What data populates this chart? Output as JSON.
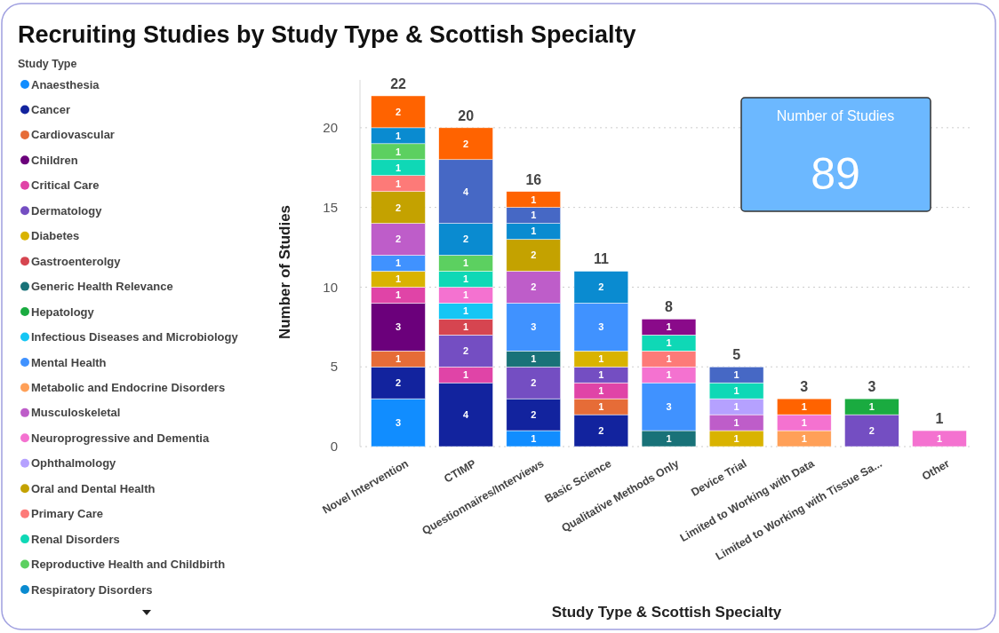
{
  "chart_data": [
    {
      "type": "bar",
      "stacked": true,
      "title": "Recruiting Studies by Study Type & Scottish Specialty",
      "xlabel": "Study Type & Scottish Specialty",
      "ylabel": "Number of Studies",
      "legend_title": "Study Type",
      "legend": "left",
      "grid": "y",
      "data_labels": true,
      "categories": [
        "Novel Intervention",
        "CTIMP",
        "Questionnaires/Interviews",
        "Basic Science",
        "Qualitative Methods Only",
        "Device Trial",
        "Limited to Working with Data",
        "Limited to Working with Tissue Sa...",
        "Other"
      ],
      "ylim": [
        0,
        23
      ],
      "yticks": [
        0,
        5,
        10,
        15,
        20
      ],
      "totals": [
        "22",
        "20",
        "16",
        "11",
        "8",
        "5",
        "3",
        "3",
        "1"
      ],
      "series": [
        {
          "name": "Anaesthesia",
          "color": "#118dff",
          "values": [
            3,
            null,
            1,
            null,
            null,
            null,
            null,
            null,
            null
          ]
        },
        {
          "name": "Cancer",
          "color": "#12239e",
          "values": [
            2,
            4,
            2,
            2,
            null,
            null,
            null,
            null,
            null
          ]
        },
        {
          "name": "Cardiovascular",
          "color": "#e66c37",
          "values": [
            1,
            null,
            null,
            1,
            null,
            null,
            null,
            null,
            null
          ]
        },
        {
          "name": "Children",
          "color": "#6b007b",
          "values": [
            3,
            null,
            null,
            null,
            null,
            null,
            null,
            null,
            null
          ]
        },
        {
          "name": "Critical Care",
          "color": "#e044a7",
          "values": [
            1,
            1,
            null,
            1,
            null,
            null,
            null,
            null,
            null
          ]
        },
        {
          "name": "Dermatology",
          "color": "#744ec2",
          "values": [
            null,
            2,
            2,
            1,
            null,
            null,
            null,
            2,
            null
          ]
        },
        {
          "name": "Diabetes",
          "color": "#d9b300",
          "values": [
            1,
            null,
            null,
            1,
            null,
            1,
            null,
            null,
            null
          ]
        },
        {
          "name": "Gastroenterolgy",
          "color": "#d64550",
          "values": [
            null,
            1,
            null,
            null,
            null,
            null,
            null,
            null,
            null
          ]
        },
        {
          "name": "Generic Health Relevance",
          "color": "#197278",
          "values": [
            null,
            null,
            1,
            null,
            1,
            null,
            null,
            null,
            null
          ]
        },
        {
          "name": "Hepatology",
          "color": "#1aab40",
          "values": [
            null,
            null,
            null,
            null,
            null,
            null,
            null,
            1,
            null
          ]
        },
        {
          "name": "Infectious Diseases and Microbiology",
          "color": "#15c6f4",
          "values": [
            null,
            1,
            null,
            null,
            null,
            null,
            null,
            null,
            null
          ]
        },
        {
          "name": "Mental Health",
          "color": "#4092ff",
          "values": [
            1,
            null,
            3,
            3,
            3,
            null,
            null,
            null,
            null
          ]
        },
        {
          "name": "Metabolic and Endocrine Disorders",
          "color": "#ffa058",
          "values": [
            null,
            null,
            null,
            null,
            null,
            null,
            1,
            null,
            null
          ]
        },
        {
          "name": "Musculoskeletal",
          "color": "#be5dc9",
          "values": [
            2,
            null,
            2,
            null,
            null,
            1,
            null,
            null,
            null
          ]
        },
        {
          "name": "Neuroprogressive and Dementia",
          "color": "#f472d0",
          "values": [
            null,
            1,
            null,
            null,
            1,
            null,
            1,
            null,
            1
          ]
        },
        {
          "name": "Ophthalmology",
          "color": "#b5a1ff",
          "values": [
            null,
            null,
            null,
            null,
            null,
            1,
            null,
            null,
            null
          ]
        },
        {
          "name": "Oral and Dental Health",
          "color": "#c4a200",
          "values": [
            2,
            null,
            2,
            null,
            null,
            null,
            null,
            null,
            null
          ]
        },
        {
          "name": "Primary Care",
          "color": "#fd7a78",
          "values": [
            1,
            null,
            null,
            null,
            1,
            null,
            null,
            null,
            null
          ]
        },
        {
          "name": "Renal Disorders",
          "color": "#0fd8b6",
          "values": [
            1,
            1,
            null,
            null,
            1,
            1,
            null,
            null,
            null
          ]
        },
        {
          "name": "Reproductive Health and Childbirth",
          "color": "#5cd060",
          "values": [
            1,
            1,
            null,
            null,
            null,
            null,
            null,
            null,
            null
          ]
        },
        {
          "name": "Respiratory Disorders",
          "color": "#0a8bd0",
          "values": [
            1,
            2,
            1,
            2,
            null,
            null,
            null,
            null,
            null
          ]
        },
        {
          "color": "#4668c5",
          "values": [
            null,
            4,
            1,
            null,
            null,
            1,
            null,
            null,
            null
          ]
        },
        {
          "color": "#8a0a8a",
          "values": [
            null,
            null,
            null,
            null,
            1,
            null,
            null,
            null,
            null
          ]
        },
        {
          "color": "#ff6300",
          "values": [
            2,
            2,
            1,
            null,
            null,
            null,
            1,
            null,
            null
          ]
        }
      ]
    },
    {
      "type": "other",
      "title": "Number of Studies",
      "annotations": [
        "89"
      ]
    }
  ]
}
